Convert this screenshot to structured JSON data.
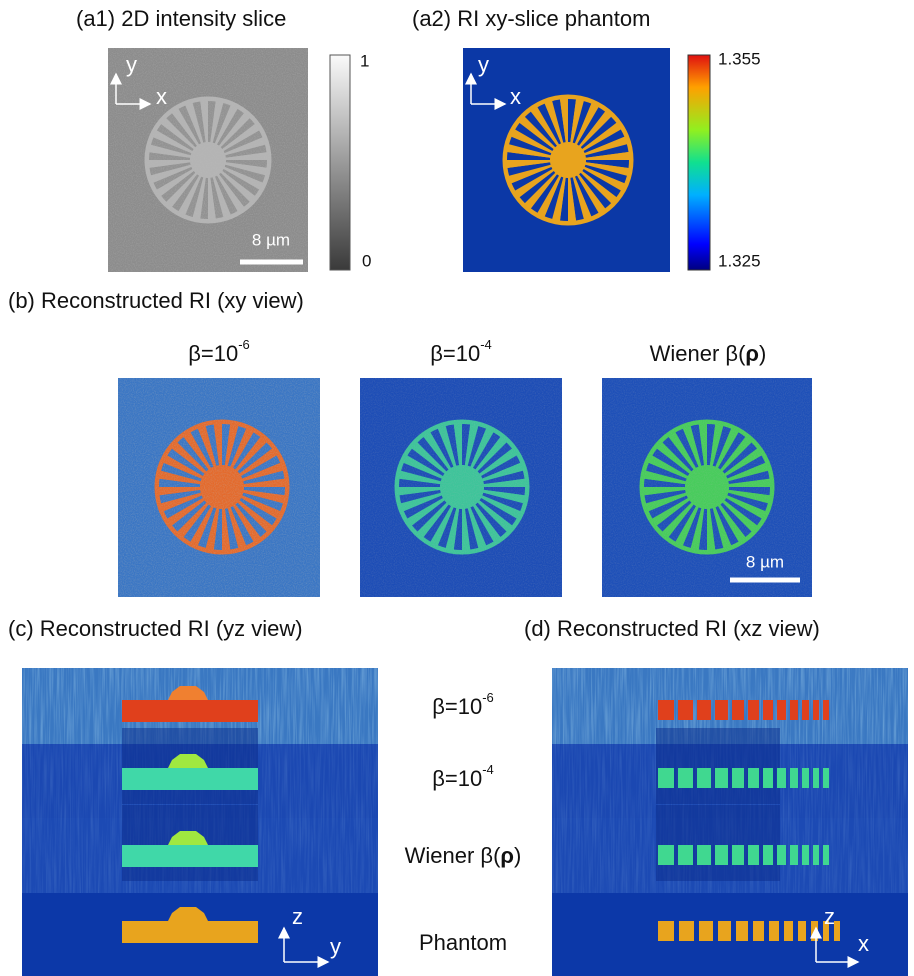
{
  "a1": {
    "title": "(a1) 2D intensity slice",
    "axis_y": "y",
    "axis_x": "x",
    "scale_bar": "8 µm",
    "colorbar_max": "1",
    "colorbar_min": "0"
  },
  "a2": {
    "title": "(a2) RI xy-slice phantom",
    "axis_y": "y",
    "axis_x": "x",
    "colorbar_max": "1.355",
    "colorbar_min": "1.325"
  },
  "b": {
    "title": "(b) Reconstructed RI (xy view)",
    "labels": [
      {
        "base": "β=10",
        "exp": "-6"
      },
      {
        "base": "β=10",
        "exp": "-4"
      },
      {
        "parts": [
          "Wiener β(",
          "ρ",
          ")"
        ]
      }
    ],
    "scale_bar": "8 µm"
  },
  "c": {
    "title": "(c) Reconstructed RI (yz view)",
    "axis_z": "z",
    "axis_y": "y"
  },
  "d": {
    "title": "(d) Reconstructed RI (xz view)",
    "axis_z": "z",
    "axis_x": "x"
  },
  "row_labels": [
    {
      "base": "β=10",
      "exp": "-6"
    },
    {
      "base": "β=10",
      "exp": "-4"
    },
    {
      "parts": [
        "Wiener β(",
        "ρ",
        ")"
      ]
    },
    {
      "text": "Phantom"
    }
  ]
}
